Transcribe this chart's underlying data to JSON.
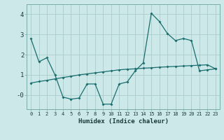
{
  "xlabel": "Humidex (Indice chaleur)",
  "bg_color": "#cce8e8",
  "grid_color": "#aacccc",
  "line_color": "#1a6e6e",
  "xlim": [
    -0.5,
    23.5
  ],
  "ylim": [
    -0.7,
    4.5
  ],
  "line1_x": [
    0,
    1,
    2,
    3,
    4,
    5,
    6,
    7,
    8,
    9,
    10,
    11,
    12,
    13,
    14,
    15,
    16,
    17,
    18,
    19,
    20,
    21,
    22,
    23
  ],
  "line1_y": [
    2.8,
    1.65,
    1.85,
    1.0,
    -0.1,
    -0.2,
    -0.15,
    0.55,
    0.55,
    -0.45,
    -0.45,
    0.55,
    0.65,
    1.2,
    1.6,
    4.05,
    3.65,
    3.05,
    2.7,
    2.8,
    2.7,
    1.2,
    1.25,
    1.3
  ],
  "line2_x": [
    0,
    1,
    2,
    3,
    4,
    5,
    6,
    7,
    8,
    9,
    10,
    11,
    12,
    13,
    14,
    15,
    16,
    17,
    18,
    19,
    20,
    21,
    22,
    23
  ],
  "line2_y": [
    0.6,
    0.67,
    0.73,
    0.8,
    0.87,
    0.93,
    1.0,
    1.05,
    1.1,
    1.15,
    1.2,
    1.25,
    1.28,
    1.3,
    1.33,
    1.35,
    1.38,
    1.4,
    1.42,
    1.44,
    1.46,
    1.48,
    1.5,
    1.3
  ]
}
